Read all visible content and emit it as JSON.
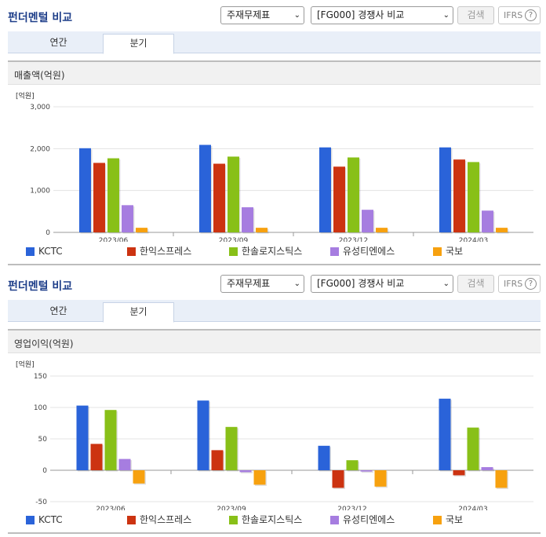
{
  "sections": [
    {
      "title": "펀더멘털 비교",
      "select1": "주재무제표",
      "select2": "[FG000] 경쟁사 비교",
      "search_label": "검색",
      "ifrs_label": "IFRS",
      "help_glyph": "?",
      "arrow_glyph": "⌄",
      "tabs": [
        "연간",
        "분기"
      ],
      "active_tab": 1,
      "panel_title": "매출액(억원)"
    },
    {
      "title": "펀더멘털 비교",
      "select1": "주재무제표",
      "select2": "[FG000] 경쟁사 비교",
      "search_label": "검색",
      "ifrs_label": "IFRS",
      "help_glyph": "?",
      "arrow_glyph": "⌄",
      "tabs": [
        "연간",
        "분기"
      ],
      "active_tab": 1,
      "panel_title": "영업이익(억원)"
    }
  ],
  "colors": {
    "series": [
      "#2a63d9",
      "#cc3311",
      "#88c018",
      "#a67de0",
      "#f7a10f"
    ],
    "grid": "#e3e3e3",
    "axis": "#999999"
  },
  "chart_data": [
    {
      "type": "bar",
      "unit_label": "[억원]",
      "categories": [
        "2023/06",
        "2023/09",
        "2023/12",
        "2024/03"
      ],
      "ylim": [
        0,
        3000
      ],
      "yticks": [
        0,
        1000,
        2000,
        3000
      ],
      "ytick_labels": [
        "0",
        "1,000",
        "2,000",
        "3,000"
      ],
      "grid": true,
      "legend": "bottom",
      "series": [
        {
          "name": "KCTC",
          "values": [
            2010,
            2090,
            2030,
            2030
          ]
        },
        {
          "name": "한익스프레스",
          "values": [
            1660,
            1640,
            1570,
            1740
          ]
        },
        {
          "name": "한솔로지스틱스",
          "values": [
            1770,
            1810,
            1790,
            1680
          ]
        },
        {
          "name": "유성티엔에스",
          "values": [
            650,
            600,
            540,
            520
          ]
        },
        {
          "name": "국보",
          "values": [
            110,
            110,
            110,
            110
          ]
        }
      ]
    },
    {
      "type": "bar",
      "unit_label": "[억원]",
      "categories": [
        "2023/06",
        "2023/09",
        "2023/12",
        "2024/03"
      ],
      "ylim": [
        -50,
        150
      ],
      "yticks": [
        -50,
        0,
        50,
        100,
        150
      ],
      "ytick_labels": [
        "-50",
        "0",
        "50",
        "100",
        "150"
      ],
      "grid": true,
      "legend": "bottom",
      "series": [
        {
          "name": "KCTC",
          "values": [
            103,
            111,
            39,
            114
          ]
        },
        {
          "name": "한익스프레스",
          "values": [
            42,
            32,
            -28,
            -8
          ]
        },
        {
          "name": "한솔로지스틱스",
          "values": [
            96,
            69,
            16,
            68
          ]
        },
        {
          "name": "유성티엔에스",
          "values": [
            18,
            -3,
            -2,
            5
          ]
        },
        {
          "name": "국보",
          "values": [
            -21,
            -23,
            -26,
            -28
          ]
        }
      ]
    }
  ]
}
